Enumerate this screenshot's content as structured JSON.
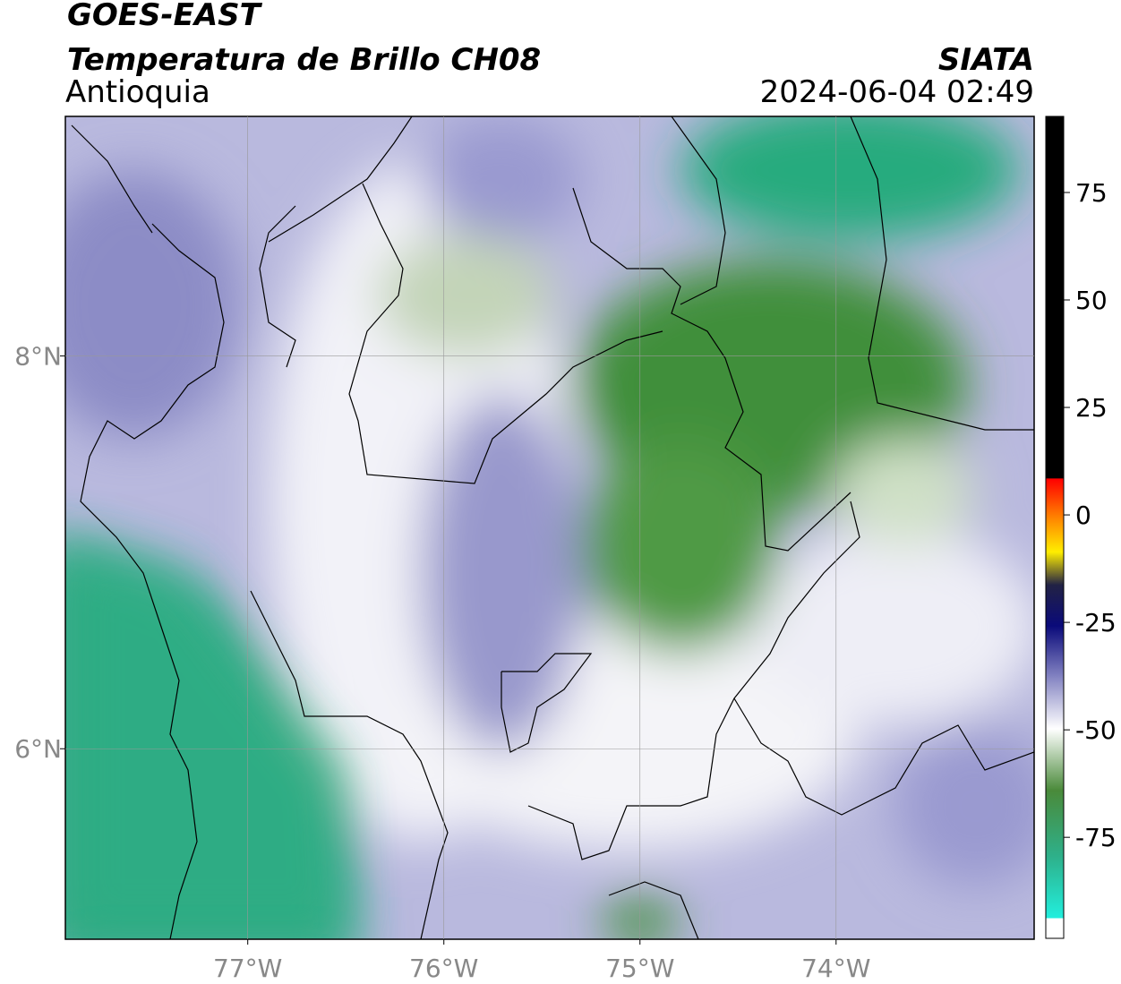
{
  "header": {
    "satellite": "GOES-EAST",
    "product": "Temperatura de Brillo CH08",
    "region": "Antioquia",
    "agency": "SIATA",
    "datetime": "2024-06-04 02:49"
  },
  "map": {
    "xlim": [
      -77.93,
      -72.99
    ],
    "ylim": [
      5.03,
      9.22
    ],
    "xticks": [
      {
        "value": -77,
        "label": "77°W"
      },
      {
        "value": -76,
        "label": "76°W"
      },
      {
        "value": -75,
        "label": "75°W"
      },
      {
        "value": -74,
        "label": "74°W"
      }
    ],
    "yticks": [
      {
        "value": 6,
        "label": "6°N"
      },
      {
        "value": 8,
        "label": "8°N"
      }
    ],
    "grid": true
  },
  "colorbar": {
    "lim": [
      -98.5,
      92.7
    ],
    "ticks": [
      75,
      50,
      25,
      0,
      -25,
      -50,
      -75
    ]
  }
}
